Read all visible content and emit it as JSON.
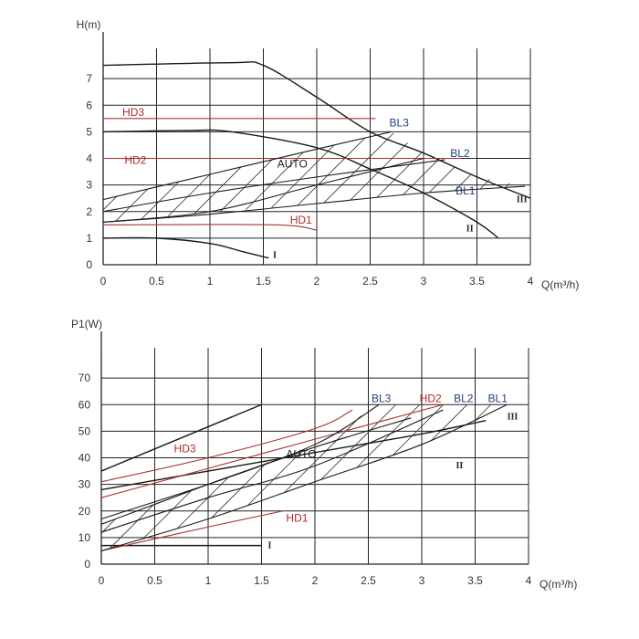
{
  "colors": {
    "grid": "#222222",
    "curve": "#1a1a1a",
    "hd": "#a83232",
    "bl_label": "#1f3f7a",
    "hd_label": "#b02a2a",
    "hatch": "#333333"
  },
  "chart_data": [
    {
      "type": "line",
      "id": "head",
      "xlabel": "Q(m³/h)",
      "ylabel": "H(m)",
      "xlim": [
        0,
        4
      ],
      "ylim": [
        0,
        8
      ],
      "x_ticks": [
        "0",
        "0.5",
        "1",
        "1.5",
        "2",
        "2.5",
        "3",
        "3.5",
        "4"
      ],
      "y_ticks": [
        "0",
        "1",
        "2",
        "3",
        "4",
        "5",
        "6",
        "7"
      ],
      "grid": true,
      "series": [
        {
          "name": "III",
          "kind": "fixed",
          "points": [
            [
              0,
              7.5
            ],
            [
              1.2,
              7.6
            ],
            [
              1.5,
              7.5
            ],
            [
              2,
              6.3
            ],
            [
              2.5,
              5.0
            ],
            [
              3,
              4.2
            ],
            [
              3.5,
              3.3
            ],
            [
              4,
              2.5
            ]
          ]
        },
        {
          "name": "II",
          "kind": "fixed",
          "points": [
            [
              0,
              5.0
            ],
            [
              0.8,
              5.05
            ],
            [
              1.2,
              5.0
            ],
            [
              2,
              4.4
            ],
            [
              2.5,
              3.6
            ],
            [
              3,
              2.7
            ],
            [
              3.5,
              1.6
            ],
            [
              3.7,
              1.0
            ]
          ]
        },
        {
          "name": "I",
          "kind": "fixed",
          "points": [
            [
              0,
              1.0
            ],
            [
              0.5,
              1.0
            ],
            [
              1,
              0.8
            ],
            [
              1.3,
              0.5
            ],
            [
              1.55,
              0.25
            ]
          ]
        },
        {
          "name": "HD3",
          "kind": "hd",
          "points": [
            [
              0,
              5.5
            ],
            [
              2.55,
              5.5
            ]
          ]
        },
        {
          "name": "HD2",
          "kind": "hd",
          "points": [
            [
              0,
              4.0
            ],
            [
              3.35,
              4.0
            ]
          ]
        },
        {
          "name": "HD1",
          "kind": "hd",
          "points": [
            [
              0,
              1.5
            ],
            [
              1.6,
              1.5
            ],
            [
              2,
              1.3
            ]
          ]
        },
        {
          "name": "BL3",
          "kind": "bl",
          "points": [
            [
              0,
              2.45
            ],
            [
              1,
              3.4
            ],
            [
              2,
              4.35
            ],
            [
              2.7,
              5.0
            ]
          ]
        },
        {
          "name": "BL2",
          "kind": "bl",
          "points": [
            [
              0,
              2.0
            ],
            [
              1,
              2.7
            ],
            [
              2,
              3.3
            ],
            [
              3.2,
              3.95
            ]
          ]
        },
        {
          "name": "BL1",
          "kind": "bl",
          "points": [
            [
              0,
              1.6
            ],
            [
              1,
              1.9
            ],
            [
              2,
              2.3
            ],
            [
              3,
              2.7
            ],
            [
              3.95,
              2.95
            ]
          ]
        },
        {
          "name": "AUTO",
          "kind": "auto",
          "points": [
            [
              0,
              1.6
            ],
            [
              1,
              2.0
            ],
            [
              2,
              3.0
            ],
            [
              3,
              4.0
            ]
          ]
        }
      ],
      "hatch_boundary": [
        [
          0,
          1.6
        ],
        [
          2,
          2.3
        ],
        [
          3,
          2.7
        ],
        [
          3.95,
          2.95
        ],
        [
          3.5,
          3.3
        ],
        [
          3,
          4.2
        ],
        [
          2.7,
          5.0
        ],
        [
          2,
          4.35
        ],
        [
          1,
          3.4
        ],
        [
          0,
          2.45
        ]
      ],
      "labels": [
        {
          "text": "HD3",
          "color_key": "hd_label",
          "at": [
            0.18,
            5.6
          ]
        },
        {
          "text": "HD2",
          "color_key": "hd_label",
          "at": [
            0.2,
            3.8
          ]
        },
        {
          "text": "HD1",
          "color_key": "hd_label",
          "at": [
            1.75,
            1.55
          ]
        },
        {
          "text": "AUTO",
          "color_key": "curve",
          "at": [
            1.63,
            3.65
          ]
        },
        {
          "text": "BL3",
          "color_key": "bl_label",
          "at": [
            2.68,
            5.2
          ]
        },
        {
          "text": "BL2",
          "color_key": "bl_label",
          "at": [
            3.25,
            4.05
          ]
        },
        {
          "text": "BL1",
          "color_key": "bl_label",
          "at": [
            3.3,
            2.65
          ]
        },
        {
          "text": "III",
          "color_key": "curve",
          "at": [
            3.87,
            2.35
          ],
          "roman": true
        },
        {
          "text": "II",
          "color_key": "curve",
          "at": [
            3.4,
            1.25
          ],
          "roman": true
        },
        {
          "text": "I",
          "color_key": "curve",
          "at": [
            1.59,
            0.25
          ],
          "roman": true
        }
      ]
    },
    {
      "type": "line",
      "id": "power",
      "xlabel": "Q(m³/h)",
      "ylabel": "P1(W)",
      "xlim": [
        0,
        4
      ],
      "ylim": [
        0,
        80
      ],
      "x_ticks": [
        "0",
        "0.5",
        "1",
        "1.5",
        "2",
        "2.5",
        "3",
        "3.5",
        "4"
      ],
      "y_ticks": [
        "0",
        "10",
        "20",
        "30",
        "40",
        "50",
        "60",
        "70"
      ],
      "grid": true,
      "series": [
        {
          "name": "III",
          "kind": "fixed",
          "points": [
            [
              0,
              35
            ],
            [
              1.5,
              60
            ]
          ]
        },
        {
          "name": "II",
          "kind": "fixed",
          "points": [
            [
              0,
              28
            ],
            [
              1,
              35
            ],
            [
              2,
              42
            ],
            [
              3,
              49
            ],
            [
              3.6,
              54
            ]
          ]
        },
        {
          "name": "I",
          "kind": "fixed",
          "points": [
            [
              0,
              7
            ],
            [
              1.5,
              7
            ]
          ]
        },
        {
          "name": "HD3",
          "kind": "hd",
          "points": [
            [
              0,
              31
            ],
            [
              1,
              40
            ],
            [
              2,
              51
            ],
            [
              2.35,
              58
            ]
          ]
        },
        {
          "name": "HD2",
          "kind": "hd",
          "points": [
            [
              0,
              25
            ],
            [
              1,
              36
            ],
            [
              2,
              47
            ],
            [
              3.2,
              60
            ]
          ]
        },
        {
          "name": "HD1",
          "kind": "hd",
          "points": [
            [
              0,
              5
            ],
            [
              1,
              14
            ],
            [
              1.7,
              20
            ]
          ]
        },
        {
          "name": "BL3",
          "kind": "bl",
          "points": [
            [
              0,
              15
            ],
            [
              1,
              30
            ],
            [
              2,
              45
            ],
            [
              2.6,
              60
            ]
          ]
        },
        {
          "name": "BL2",
          "kind": "bl",
          "points": [
            [
              0,
              12
            ],
            [
              1,
              25
            ],
            [
              2,
              37
            ],
            [
              3.2,
              58
            ]
          ]
        },
        {
          "name": "BL1",
          "kind": "bl",
          "points": [
            [
              0,
              5
            ],
            [
              1,
              17
            ],
            [
              2,
              31
            ],
            [
              3,
              45
            ],
            [
              3.8,
              60
            ]
          ]
        },
        {
          "name": "AUTO",
          "kind": "auto",
          "points": [
            [
              0,
              17
            ],
            [
              1,
              30
            ],
            [
              2,
              44
            ],
            [
              2.9,
              55
            ]
          ]
        }
      ],
      "hatch_boundary": [
        [
          0,
          5
        ],
        [
          1,
          17
        ],
        [
          2,
          31
        ],
        [
          3,
          45
        ],
        [
          3.8,
          60
        ],
        [
          3.2,
          60
        ],
        [
          2.6,
          60
        ],
        [
          2,
          45
        ],
        [
          1,
          30
        ],
        [
          0,
          15
        ]
      ],
      "labels": [
        {
          "text": "HD3",
          "color_key": "hd_label",
          "at": [
            0.68,
            42
          ]
        },
        {
          "text": "HD2",
          "color_key": "hd_label",
          "at": [
            2.98,
            61
          ]
        },
        {
          "text": "HD1",
          "color_key": "hd_label",
          "at": [
            1.73,
            16
          ]
        },
        {
          "text": "AUTO",
          "color_key": "curve",
          "at": [
            1.73,
            40
          ]
        },
        {
          "text": "BL3",
          "color_key": "bl_label",
          "at": [
            2.53,
            61
          ]
        },
        {
          "text": "BL2",
          "color_key": "bl_label",
          "at": [
            3.3,
            61
          ]
        },
        {
          "text": "BL1",
          "color_key": "bl_label",
          "at": [
            3.62,
            61
          ]
        },
        {
          "text": "III",
          "color_key": "curve",
          "at": [
            3.8,
            54.5
          ],
          "roman": true
        },
        {
          "text": "II",
          "color_key": "curve",
          "at": [
            3.32,
            36
          ],
          "roman": true
        },
        {
          "text": "I",
          "color_key": "curve",
          "at": [
            1.56,
            6
          ],
          "roman": true
        }
      ]
    }
  ]
}
